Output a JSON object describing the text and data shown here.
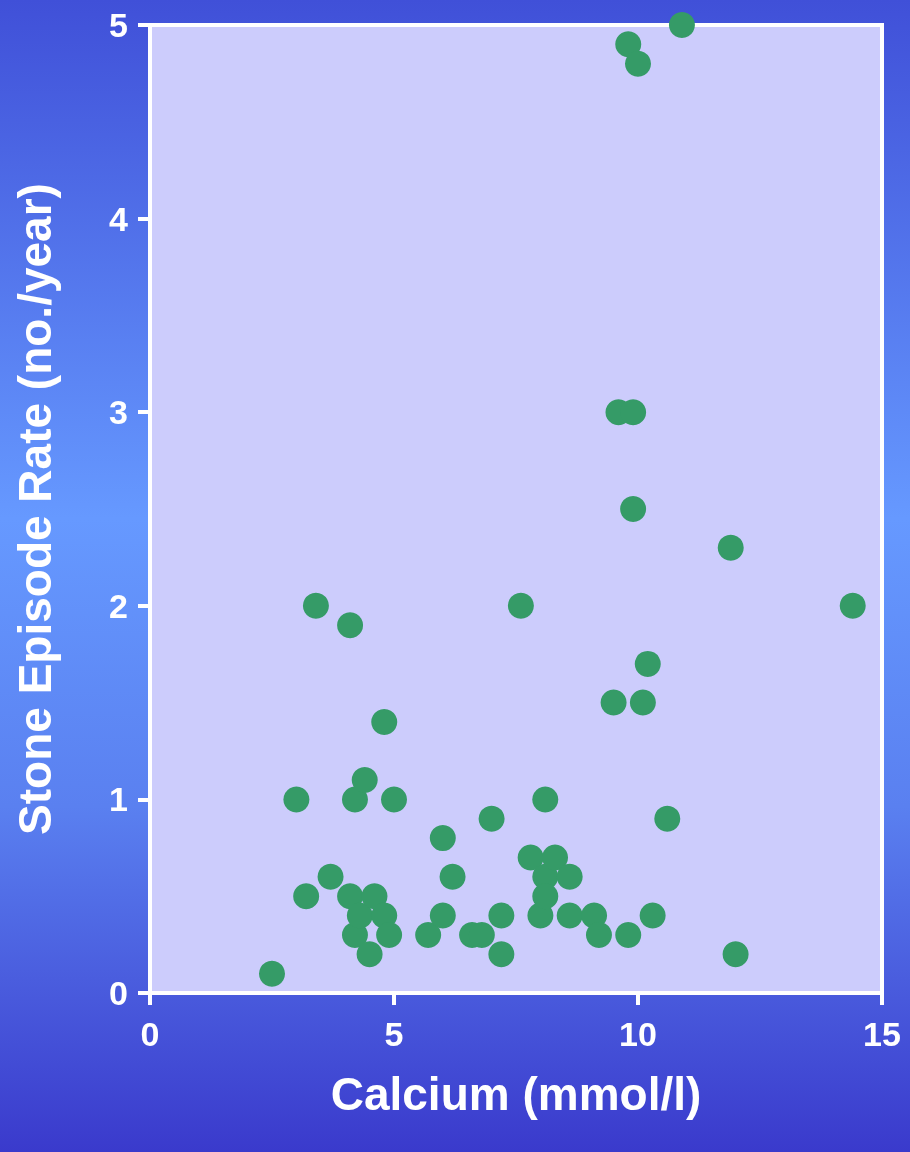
{
  "chart_data": {
    "type": "scatter",
    "xlabel": "Calcium (mmol/l)",
    "ylabel": "Stone Episode Rate (no./year)",
    "xlim": [
      0,
      15
    ],
    "xticks": [
      0,
      5,
      10,
      15
    ],
    "ylim": [
      0,
      5
    ],
    "yticks": [
      0,
      1,
      2,
      3,
      4,
      5
    ],
    "grid": false,
    "marker": "circle",
    "series": [
      {
        "color": "#359b67",
        "x": [
          2.5,
          3.0,
          3.2,
          3.4,
          3.7,
          4.1,
          4.1,
          4.2,
          4.2,
          4.3,
          4.4,
          4.5,
          4.6,
          4.8,
          4.8,
          4.9,
          5.0,
          5.7,
          6.0,
          6.0,
          6.2,
          6.6,
          6.8,
          7.0,
          7.2,
          7.2,
          7.6,
          7.8,
          8.0,
          8.1,
          8.1,
          8.1,
          8.3,
          8.6,
          8.6,
          9.1,
          9.2,
          9.5,
          9.6,
          9.8,
          9.8,
          9.9,
          9.9,
          10.0,
          10.1,
          10.2,
          10.3,
          10.6,
          10.9,
          11.9,
          12.0,
          14.4
        ],
        "values": [
          0.1,
          1.0,
          0.5,
          2.0,
          0.6,
          1.9,
          0.5,
          0.3,
          1.0,
          0.4,
          1.1,
          0.2,
          0.5,
          0.4,
          1.4,
          0.3,
          1.0,
          0.3,
          0.8,
          0.4,
          0.6,
          0.3,
          0.3,
          0.9,
          0.4,
          0.2,
          2.0,
          0.7,
          0.4,
          0.6,
          1.0,
          0.5,
          0.7,
          0.6,
          0.4,
          0.4,
          0.3,
          1.5,
          3.0,
          4.9,
          0.3,
          3.0,
          2.5,
          4.8,
          1.5,
          1.7,
          0.4,
          0.9,
          5.0,
          2.3,
          0.2,
          2.0
        ]
      }
    ]
  }
}
